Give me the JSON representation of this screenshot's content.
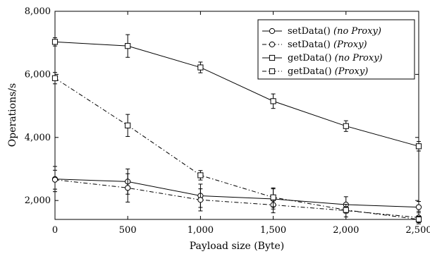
{
  "chart_data": {
    "type": "line",
    "title": "",
    "xlabel": "Payload size (Byte)",
    "ylabel": "Operations/s",
    "x": [
      0,
      500,
      1000,
      1500,
      2000,
      2500
    ],
    "x_tick_labels": [
      "0",
      "500",
      "1,000",
      "1,500",
      "2,000",
      "2,500"
    ],
    "xlim": [
      0,
      2500
    ],
    "y_ticks": [
      2000,
      4000,
      6000,
      8000
    ],
    "y_tick_labels": [
      "2,000",
      "4,000",
      "6,000",
      "8,000"
    ],
    "ylim": [
      1400,
      8000
    ],
    "grid": false,
    "legend_position": "top-right",
    "series": [
      {
        "name": "setData()",
        "name_note": "(no Proxy)",
        "marker": "circle",
        "line_style": "solid",
        "values": [
          2680,
          2600,
          2150,
          2050,
          1870,
          1790
        ],
        "errors": [
          400,
          400,
          370,
          320,
          250,
          180
        ]
      },
      {
        "name": "setData()",
        "name_note": "(Proxy)",
        "marker": "circle",
        "line_style": "dashdot",
        "values": [
          2660,
          2400,
          2020,
          1860,
          1680,
          1460
        ],
        "errors": [
          300,
          450,
          350,
          250,
          200,
          200
        ]
      },
      {
        "name": "getData()",
        "name_note": "(no Proxy)",
        "marker": "square",
        "line_style": "solid",
        "values": [
          7030,
          6900,
          6220,
          5150,
          4360,
          3720
        ],
        "errors": [
          130,
          360,
          170,
          230,
          170,
          150
        ]
      },
      {
        "name": "getData()",
        "name_note": "(Proxy)",
        "marker": "square",
        "line_style": "dashdot",
        "values": [
          5880,
          4380,
          2800,
          2100,
          1700,
          1400
        ],
        "errors": [
          180,
          350,
          150,
          300,
          100,
          100
        ]
      }
    ]
  }
}
